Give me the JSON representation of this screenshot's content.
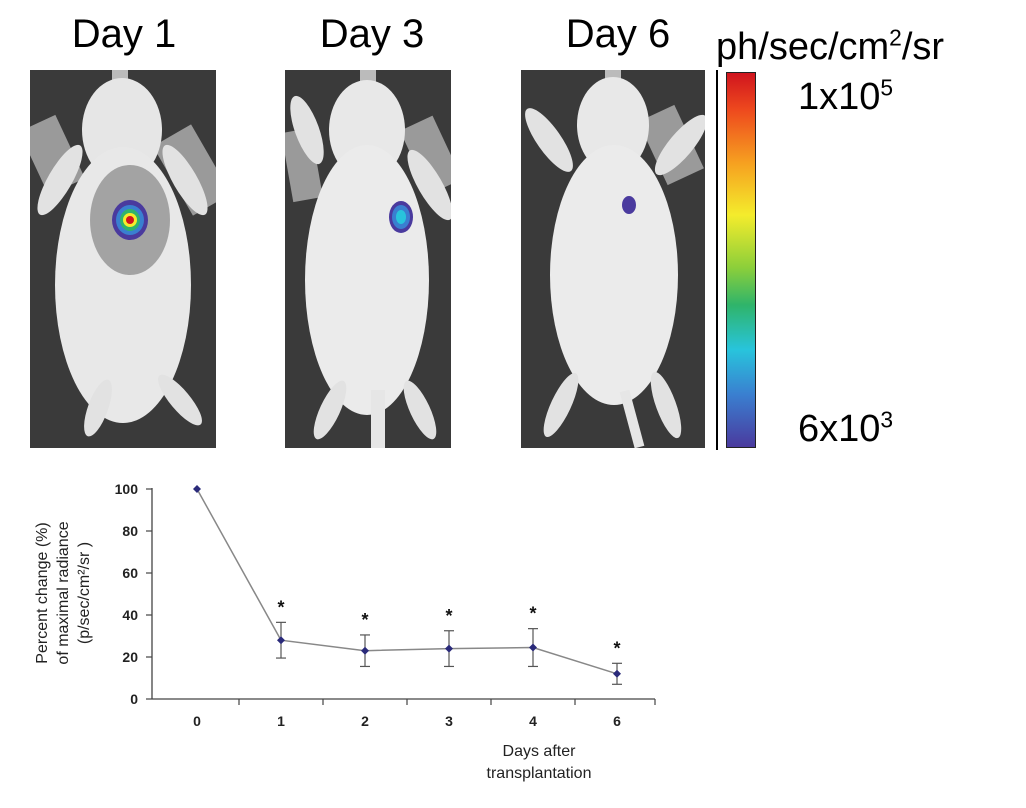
{
  "panels": [
    {
      "title": "Day 1"
    },
    {
      "title": "Day 3"
    },
    {
      "title": "Day 6"
    }
  ],
  "scale": {
    "unit_base": "ph/sec/cm",
    "unit_exp": "2",
    "unit_tail": "/sr",
    "max_base": "1x10",
    "max_exp": "5",
    "min_base": "6x10",
    "min_exp": "3",
    "colors": [
      "#d0141e",
      "#f6a020",
      "#f4ec2c",
      "#2fb46a",
      "#28c4dc",
      "#4a3a9e"
    ]
  },
  "chart_data": {
    "type": "line",
    "x_categories": [
      "0",
      "1",
      "2",
      "3",
      "4",
      "6"
    ],
    "values": [
      100,
      28,
      23,
      24,
      24.5,
      12
    ],
    "error": [
      0,
      8.5,
      7.5,
      8.5,
      9,
      5
    ],
    "significant": [
      false,
      true,
      true,
      true,
      true,
      true
    ],
    "significance_marker": "*",
    "ylabel_lines": [
      "Percent change (%)",
      "of maximal radiance",
      "(p/sec/cm²/sr )"
    ],
    "xlabel_lines": [
      "Days after",
      "transplantation"
    ],
    "yticks": [
      "0",
      "20",
      "40",
      "60",
      "80",
      "100"
    ],
    "ylim": [
      0,
      100
    ],
    "series_color": "#2a2a7a",
    "line_color": "#888888"
  }
}
